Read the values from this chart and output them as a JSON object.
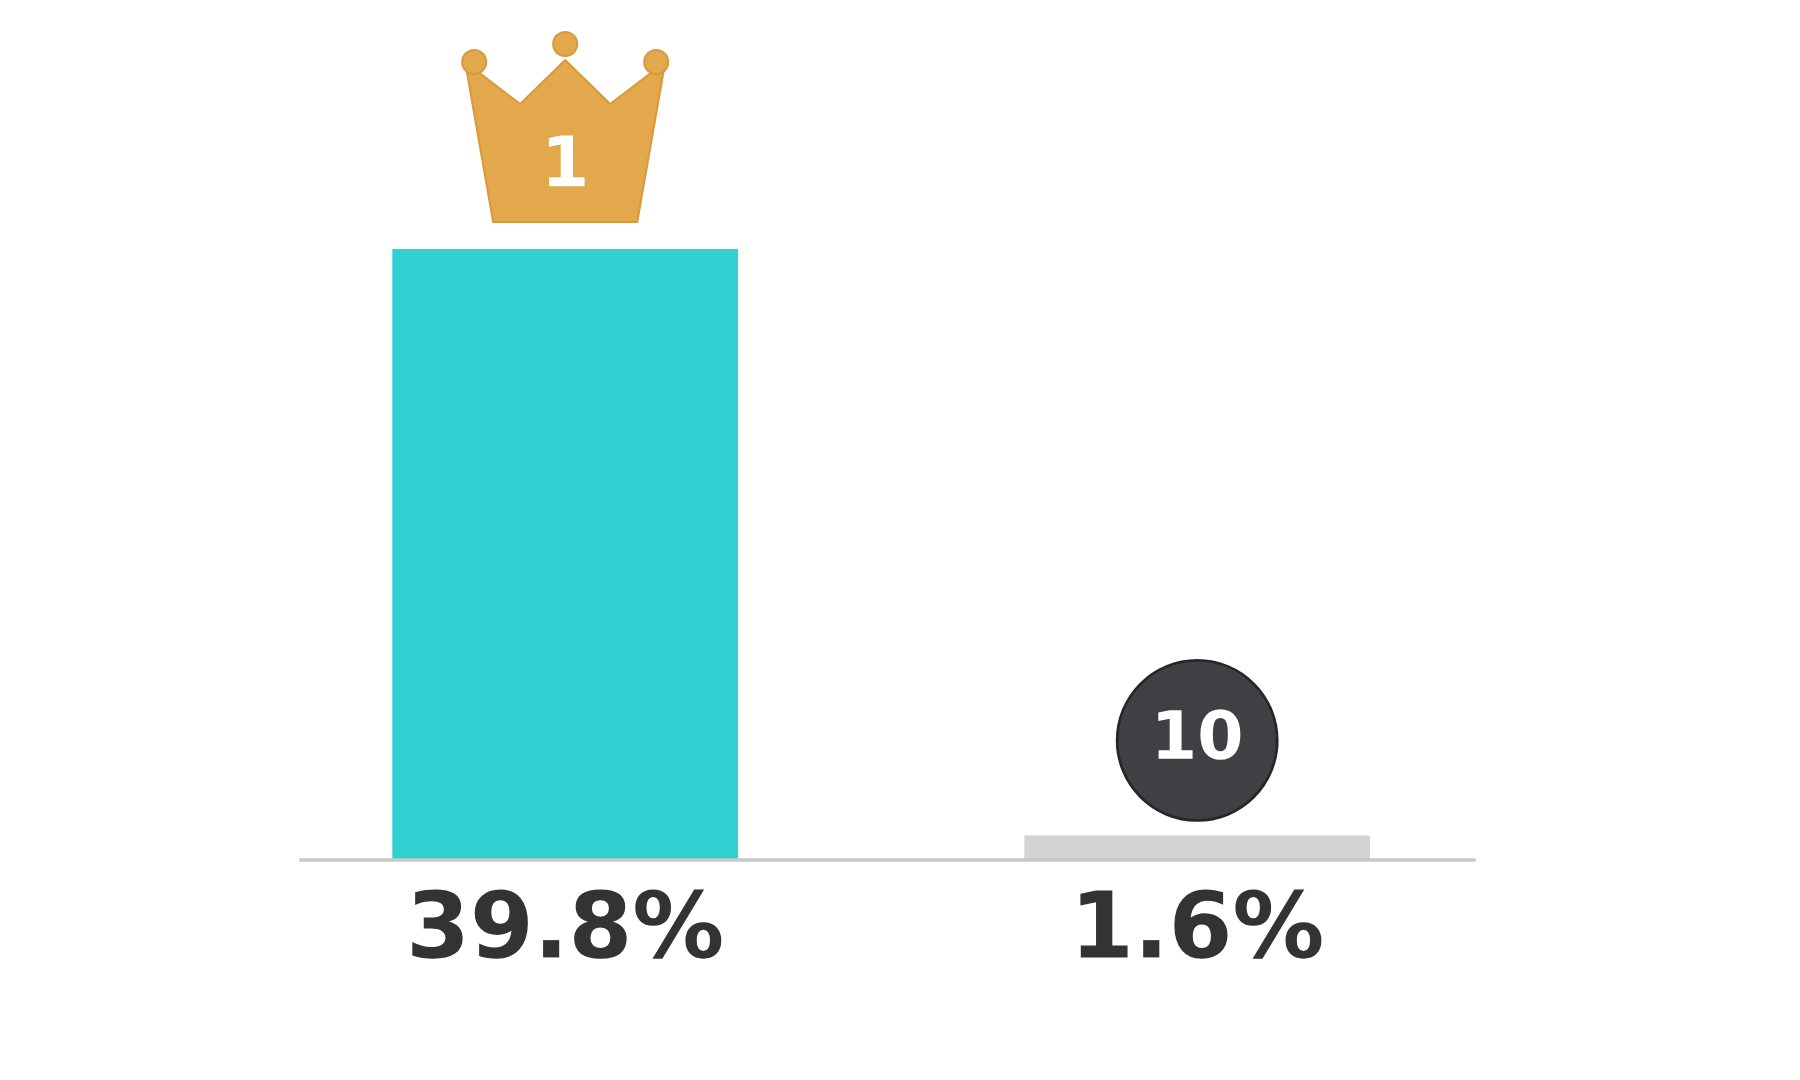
{
  "chart_data": {
    "type": "bar",
    "categories": [
      "1",
      "10"
    ],
    "values": [
      39.8,
      1.6
    ],
    "colors": [
      "#31d0d0",
      "#d3d3d3"
    ],
    "value_labels": [
      "39.8%",
      "1.6%"
    ]
  }
}
